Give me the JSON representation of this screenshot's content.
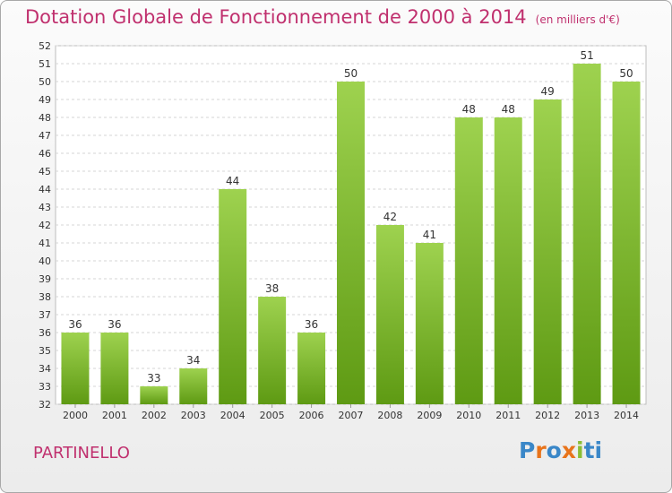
{
  "title": "Dotation Globale de Fonctionnement de 2000 à 2014",
  "subtitle": "(en milliers d'€)",
  "place": "PARTINELLO",
  "logo": {
    "letters": [
      "P",
      "r",
      "o",
      "x",
      "i",
      "ti"
    ]
  },
  "colors": {
    "accent": "#c0306e",
    "bar_top": "#9ed24f",
    "bar_bottom": "#5e9a13",
    "grid": "#d6d6d6"
  },
  "chart_data": {
    "type": "bar",
    "categories": [
      "2000",
      "2001",
      "2002",
      "2003",
      "2004",
      "2005",
      "2006",
      "2007",
      "2008",
      "2009",
      "2010",
      "2011",
      "2012",
      "2013",
      "2014"
    ],
    "values": [
      36,
      36,
      33,
      34,
      44,
      38,
      36,
      50,
      42,
      41,
      48,
      48,
      49,
      51,
      50
    ],
    "title": "Dotation Globale de Fonctionnement de 2000 à 2014",
    "xlabel": "",
    "ylabel": "",
    "ylim": [
      32,
      52
    ],
    "yticks": [
      32,
      33,
      34,
      35,
      36,
      37,
      38,
      39,
      40,
      41,
      42,
      43,
      44,
      45,
      46,
      47,
      48,
      49,
      50,
      51,
      52
    ],
    "grid": true
  }
}
